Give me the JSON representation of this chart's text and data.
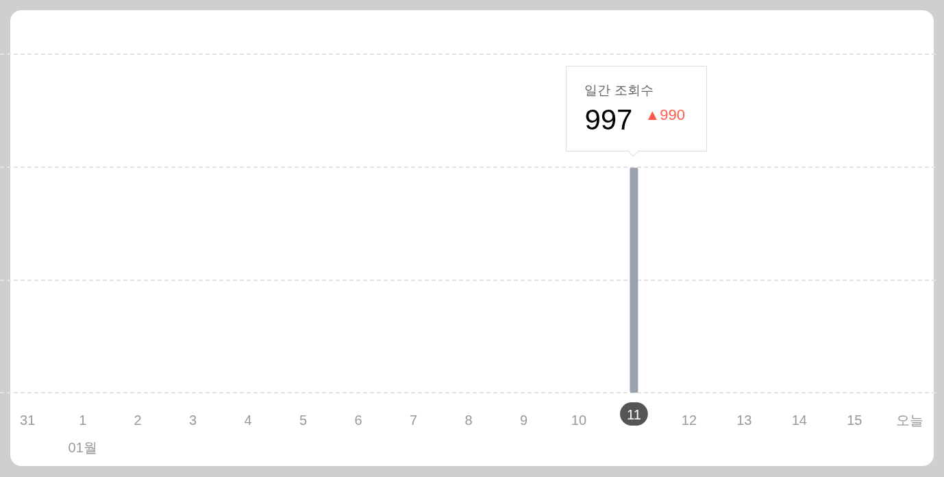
{
  "chart_data": {
    "type": "bar",
    "categories": [
      "31",
      "1\n01월",
      "2",
      "3",
      "4",
      "5",
      "6",
      "7",
      "8",
      "9",
      "10",
      "11",
      "12",
      "13",
      "14",
      "15",
      "오늘"
    ],
    "values": [
      null,
      null,
      null,
      null,
      null,
      null,
      null,
      null,
      null,
      null,
      null,
      997,
      null,
      null,
      null,
      null,
      null
    ],
    "value_labels": [
      null,
      null,
      null,
      null,
      null,
      null,
      null,
      null,
      null,
      null,
      null,
      "997",
      null,
      null,
      null,
      null,
      null
    ],
    "color": "#9aa3ad",
    "ylim": [
      0,
      1500
    ],
    "yticks": [
      {
        "value": 0,
        "label": null
      },
      {
        "value": 500,
        "label": null
      },
      {
        "value": 1000,
        "label": null
      },
      {
        "value": 1500,
        "label": null
      }
    ],
    "grid": "y",
    "tick_labels": "x",
    "annotations": [
      "일간 조회수",
      "▲990"
    ]
  }
}
